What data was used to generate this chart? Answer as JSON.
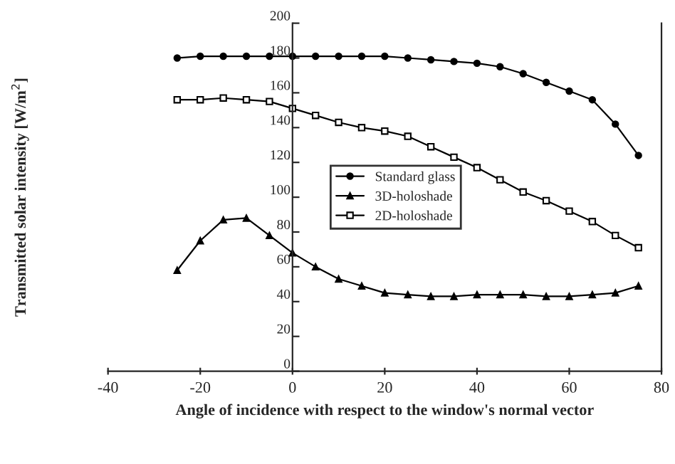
{
  "chart_data": {
    "type": "line",
    "xlabel": "Angle of incidence with respect to the window's normal vector",
    "ylabel": "Transmitted solar intensity [W/m$^{2}$]",
    "x": [
      -25,
      -20,
      -15,
      -10,
      -5,
      0,
      5,
      10,
      15,
      20,
      25,
      30,
      35,
      40,
      45,
      50,
      55,
      60,
      65,
      70,
      75
    ],
    "series": [
      {
        "name": "Standard glass",
        "color": "#000000",
        "marker": "circle",
        "values": [
          180,
          181,
          181,
          181,
          181,
          181,
          181,
          181,
          181,
          181,
          180,
          179,
          178,
          177,
          175,
          171,
          166,
          161,
          156,
          142,
          124
        ]
      },
      {
        "name": "3D-holoshade",
        "color": "#000000",
        "marker": "triangle",
        "values": [
          58,
          75,
          87,
          88,
          78,
          68,
          60,
          53,
          49,
          45,
          44,
          43,
          43,
          44,
          44,
          44,
          43,
          43,
          44,
          45,
          49
        ]
      },
      {
        "name": "2D-holoshade",
        "color": "#000000",
        "marker": "square",
        "values": [
          156,
          156,
          157,
          156,
          155,
          151,
          147,
          143,
          140,
          138,
          135,
          129,
          123,
          117,
          110,
          103,
          98,
          92,
          86,
          78,
          71
        ]
      }
    ],
    "xlim": [
      -40,
      80
    ],
    "ylim": [
      0,
      200
    ],
    "xticks": [
      -40,
      -20,
      0,
      20,
      40,
      60,
      80
    ],
    "yticks": [
      0,
      20,
      40,
      60,
      80,
      100,
      120,
      140,
      160,
      180,
      200
    ],
    "grid": false,
    "legend": "center right",
    "line_style": "solid"
  }
}
